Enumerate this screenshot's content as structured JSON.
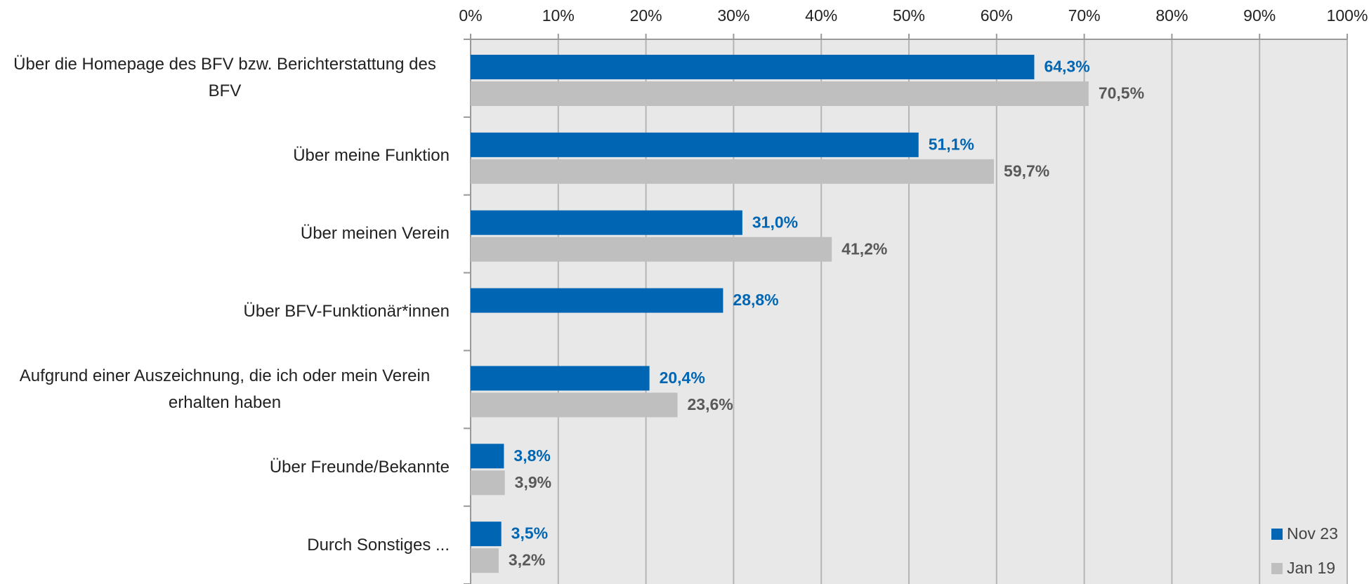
{
  "chart_data": {
    "type": "barh",
    "categories": [
      "Über die Homepage des BFV bzw. Berichterstattung des BFV",
      "Über meine Funktion",
      "Über meinen Verein",
      "Über BFV-Funktionär*innen",
      "Aufgrund einer Auszeichnung, die ich oder mein Verein erhalten haben",
      "Über Freunde/Bekannte",
      "Durch Sonstiges ..."
    ],
    "series": [
      {
        "name": "Nov 23",
        "color": "#0066b3",
        "label_color": "#0066b3",
        "values": [
          64.3,
          51.1,
          31.0,
          28.8,
          20.4,
          3.8,
          3.5
        ],
        "value_labels": [
          "64,3%",
          "51,1%",
          "31,0%",
          "28,8%",
          "20,4%",
          "3,8%",
          "3,5%"
        ]
      },
      {
        "name": "Jan 19",
        "color": "#bfbfbf",
        "label_color": "#595959",
        "values": [
          70.5,
          59.7,
          41.2,
          null,
          23.6,
          3.9,
          3.2
        ],
        "value_labels": [
          "70,5%",
          "59,7%",
          "41,2%",
          null,
          "23,6%",
          "3,9%",
          "3,2%"
        ]
      }
    ],
    "xlim": [
      0,
      100
    ],
    "xticks": [
      {
        "value": 0,
        "label": "0%"
      },
      {
        "value": 10,
        "label": "10%"
      },
      {
        "value": 20,
        "label": "20%"
      },
      {
        "value": 30,
        "label": "30%"
      },
      {
        "value": 40,
        "label": "40%"
      },
      {
        "value": 50,
        "label": "50%"
      },
      {
        "value": 60,
        "label": "60%"
      },
      {
        "value": 70,
        "label": "70%"
      },
      {
        "value": 80,
        "label": "80%"
      },
      {
        "value": 90,
        "label": "90%"
      },
      {
        "value": 100,
        "label": "100%"
      }
    ],
    "grid": true,
    "legend": "lower right"
  }
}
